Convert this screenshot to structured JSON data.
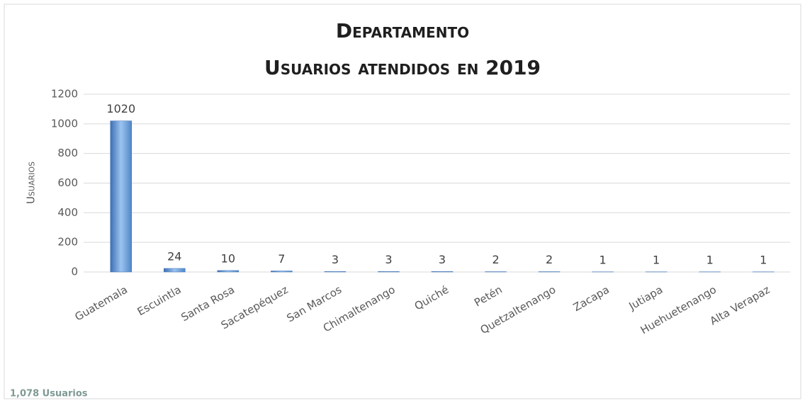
{
  "chart_data": {
    "type": "bar",
    "title": "Departamento",
    "subtitle": "Usuarios atendidos en 2019",
    "ylabel": "Usuarios",
    "annotation": "1,078 Usuarios",
    "categories": [
      "Guatemala",
      "Escuintla",
      "Santa Rosa",
      "Sacatepéquez",
      "San Marcos",
      "Chimaltenango",
      "Quiché",
      "Petén",
      "Quetzaltenango",
      "Zacapa",
      "Jutiapa",
      "Huehuetenango",
      "Alta Verapaz"
    ],
    "values": [
      1020,
      24,
      10,
      7,
      3,
      3,
      3,
      2,
      2,
      1,
      1,
      1,
      1
    ],
    "color": "#4f86c6",
    "ylim": [
      0,
      1200
    ],
    "yticks": [
      0,
      200,
      400,
      600,
      800,
      1000,
      1200
    ],
    "grid": true
  }
}
